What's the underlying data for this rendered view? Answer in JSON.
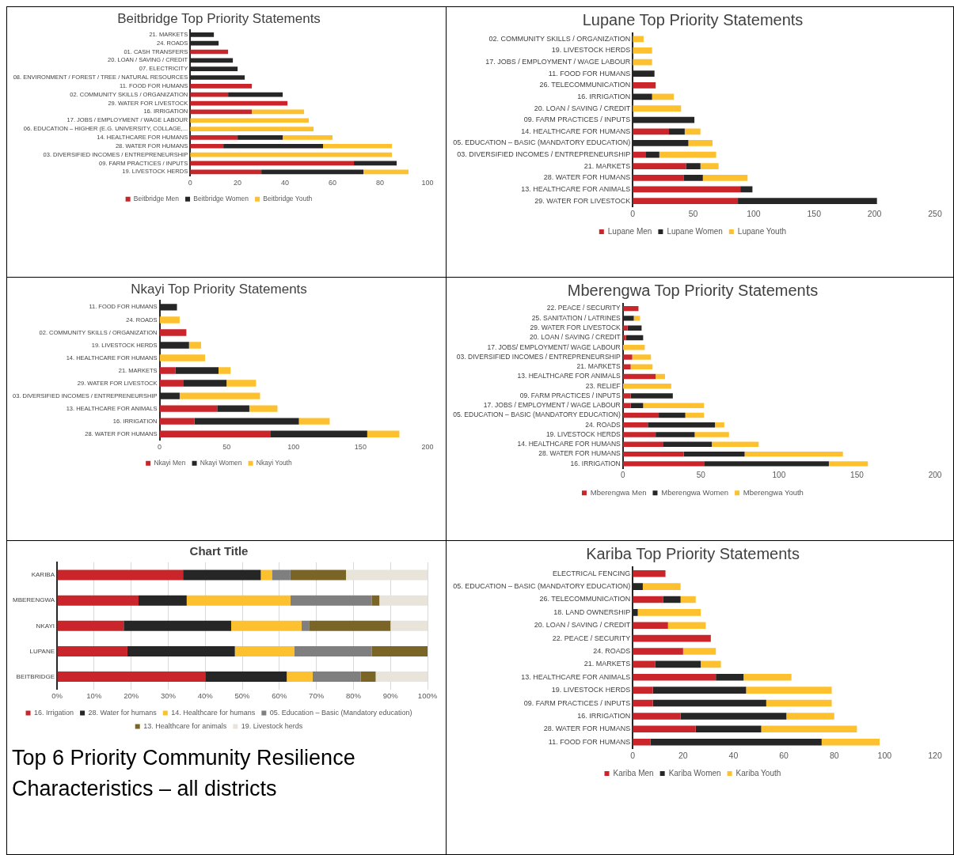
{
  "chart_data": [
    {
      "type": "bar",
      "orientation": "horizontal",
      "stacked": true,
      "title": "Beitbridge Top Priority Statements",
      "legend": "bottom",
      "grid": false,
      "categories": [
        "21. MARKETS",
        "24. ROADS",
        "01. CASH TRANSFERS",
        "20. LOAN / SAVING / CREDIT",
        "07. ELECTRICITY",
        "08. ENVIRONMENT / FOREST / TREE / NATURAL RESOURCES",
        "11. FOOD FOR HUMANS",
        "02. COMMUNITY SKILLS / ORGANIZATION",
        "29. WATER FOR LIVESTOCK",
        "16. IRRIGATION",
        "17. JOBS / EMPLOYMENT / WAGE LABOUR",
        "06. EDUCATION – HIGHER (E.G. UNIVERSITY, COLLAGE,...",
        "14. HEALTHCARE FOR HUMANS",
        "28. WATER FOR HUMANS",
        "03. DIVERSIFIED INCOMES / ENTREPRENEURSHIP",
        "09. FARM PRACTICES / INPUTS",
        "19. LIVESTOCK HERDS"
      ],
      "series": [
        {
          "name": "Beitbridge Men",
          "color": "#c9252b",
          "values": [
            0,
            0,
            16,
            0,
            0,
            0,
            26,
            16,
            41,
            26,
            0,
            0,
            20,
            14,
            0,
            69,
            30
          ]
        },
        {
          "name": "Beitbridge Women",
          "color": "#262626",
          "values": [
            10,
            12,
            0,
            18,
            20,
            23,
            0,
            23,
            0,
            0,
            0,
            0,
            19,
            42,
            0,
            18,
            43
          ]
        },
        {
          "name": "Beitbridge Youth",
          "color": "#fdc02f",
          "values": [
            0,
            0,
            0,
            0,
            0,
            0,
            0,
            0,
            0,
            22,
            50,
            52,
            21,
            29,
            85,
            0,
            19
          ]
        }
      ],
      "xlim": [
        0,
        100
      ],
      "xticks": [
        0,
        20,
        40,
        60,
        80,
        100
      ]
    },
    {
      "type": "bar",
      "orientation": "horizontal",
      "stacked": true,
      "title": "Lupane Top Priority Statements",
      "legend": "bottom",
      "grid": false,
      "categories": [
        "02. COMMUNITY SKILLS / ORGANIZATION",
        "19. LIVESTOCK HERDS",
        "17. JOBS / EMPLOYMENT / WAGE LABOUR",
        "11. FOOD FOR HUMANS",
        "26. TELECOMMUNICATION",
        "16. IRRIGATION",
        "20. LOAN / SAVING / CREDIT",
        "09. FARM PRACTICES / INPUTS",
        "14. HEALTHCARE FOR HUMANS",
        "05. EDUCATION – BASIC (MANDATORY EDUCATION)",
        "03. DIVERSIFIED INCOMES / ENTREPRENEURSHIP",
        "21. MARKETS",
        "28. WATER FOR HUMANS",
        "13. HEALTHCARE FOR ANIMALS",
        "29. WATER FOR LIVESTOCK"
      ],
      "series": [
        {
          "name": "Lupane Men",
          "color": "#c9252b",
          "values": [
            0,
            0,
            0,
            0,
            19,
            0,
            0,
            0,
            30,
            0,
            11,
            44,
            42,
            89,
            87
          ]
        },
        {
          "name": "Lupane Women",
          "color": "#262626",
          "values": [
            0,
            0,
            0,
            18,
            0,
            16,
            0,
            51,
            13,
            46,
            11,
            12,
            16,
            10,
            115
          ]
        },
        {
          "name": "Lupane Youth",
          "color": "#fdc02f",
          "values": [
            9,
            16,
            16,
            0,
            0,
            18,
            40,
            0,
            13,
            20,
            47,
            15,
            37,
            0,
            0
          ]
        }
      ],
      "xlim": [
        0,
        250
      ],
      "xticks": [
        0,
        50,
        100,
        150,
        200,
        250
      ]
    },
    {
      "type": "bar",
      "orientation": "horizontal",
      "stacked": true,
      "title": "Nkayi Top Priority Statements",
      "legend": "bottom",
      "grid": false,
      "categories": [
        "11. FOOD FOR HUMANS",
        "24. ROADS",
        "02. COMMUNITY SKILLS / ORGANIZATION",
        "19. LIVESTOCK HERDS",
        "14. HEALTHCARE FOR HUMANS",
        "21. MARKETS",
        "29. WATER FOR LIVESTOCK",
        "03. DIVERSIFIED INCOMES / ENTREPRENEURSHIP",
        "13. HEALTHCARE FOR ANIMALS",
        "16. IRRIGATION",
        "28. WATER FOR HUMANS"
      ],
      "series": [
        {
          "name": "Nkayi Men",
          "color": "#c9252b",
          "values": [
            0,
            0,
            20,
            0,
            0,
            12,
            18,
            0,
            43,
            26,
            83
          ]
        },
        {
          "name": "Nkayi Women",
          "color": "#262626",
          "values": [
            13,
            0,
            0,
            22,
            0,
            32,
            32,
            15,
            24,
            78,
            72
          ]
        },
        {
          "name": "Nkayi Youth",
          "color": "#fdc02f",
          "values": [
            0,
            15,
            0,
            9,
            34,
            9,
            22,
            60,
            21,
            23,
            24
          ]
        }
      ],
      "xlim": [
        0,
        200
      ],
      "xticks": [
        0,
        50,
        100,
        150,
        200
      ]
    },
    {
      "type": "bar",
      "orientation": "horizontal",
      "stacked": true,
      "title": "Mberengwa Top Priority Statements",
      "legend": "bottom",
      "grid": false,
      "categories": [
        "22. PEACE / SECURITY",
        "25. SANITATION / LATRINES",
        "29. WATER FOR LIVESTOCK",
        "20. LOAN / SAVING / CREDIT",
        "17. JOBS/ EMPLOYMENT/ WAGE LABOUR",
        "03. DIVERSIFIED INCOMES / ENTREPRENEURSHIP",
        "21. MARKETS",
        "13. HEALTHCARE FOR ANIMALS",
        "23. RELIEF",
        "09. FARM PRACTICES / INPUTS",
        "17. JOBS / EMPLOYMENT / WAGE LABOUR",
        "05. EDUCATION – BASIC (MANDATORY EDUCATION)",
        "24. ROADS",
        "19. LIVESTOCK HERDS",
        "14. HEALTHCARE FOR HUMANS",
        "28. WATER FOR HUMANS",
        "16. IRRIGATION"
      ],
      "series": [
        {
          "name": "Mberengwa Men",
          "color": "#c9252b",
          "values": [
            10,
            0,
            3,
            2,
            0,
            6,
            5,
            21,
            0,
            5,
            5,
            23,
            16,
            21,
            26,
            39,
            52
          ]
        },
        {
          "name": "Mberengwa Women",
          "color": "#262626",
          "values": [
            0,
            7,
            9,
            11,
            0,
            0,
            0,
            0,
            0,
            27,
            8,
            17,
            43,
            25,
            31,
            39,
            80
          ]
        },
        {
          "name": "Mberengwa Youth",
          "color": "#fdc02f",
          "values": [
            0,
            4,
            0,
            0,
            14,
            12,
            14,
            6,
            31,
            0,
            39,
            12,
            6,
            22,
            30,
            63,
            25
          ]
        }
      ],
      "xlim": [
        0,
        200
      ],
      "xticks": [
        0,
        50,
        100,
        150,
        200
      ]
    },
    {
      "type": "bar",
      "orientation": "horizontal",
      "stacked": true,
      "title": "Chart Title",
      "legend": "bottom",
      "grid": "x",
      "categories": [
        "KARIBA",
        "MBERENGWA",
        "NKAYI",
        "LUPANE",
        "BEITBRIDGE"
      ],
      "series": [
        {
          "name": "16. Irrigation",
          "color": "#c9252b",
          "values": [
            34,
            22,
            18,
            19,
            40
          ]
        },
        {
          "name": "28. Water for humans",
          "color": "#262626",
          "values": [
            21,
            13,
            29,
            29,
            22
          ]
        },
        {
          "name": "14. Healthcare for humans",
          "color": "#fdc02f",
          "values": [
            3,
            28,
            19,
            16,
            7
          ]
        },
        {
          "name": "05. Education – Basic (Mandatory education)",
          "color": "#7f7f7f",
          "values": [
            5,
            22,
            2,
            21,
            13
          ]
        },
        {
          "name": "13. Healthcare for animals",
          "color": "#7a6426",
          "values": [
            15,
            2,
            22,
            15,
            4
          ]
        },
        {
          "name": "19. Livestock herds",
          "color": "#e8e4da",
          "values": [
            22,
            13,
            10,
            0,
            14
          ]
        }
      ],
      "xlim": [
        0,
        100
      ],
      "xticks": [
        {
          "value": 0,
          "label": "0%"
        },
        {
          "value": 10,
          "label": "10%"
        },
        {
          "value": 20,
          "label": "20%"
        },
        {
          "value": 30,
          "label": "30%"
        },
        {
          "value": 40,
          "label": "40%"
        },
        {
          "value": 50,
          "label": "50%"
        },
        {
          "value": 60,
          "label": "60%"
        },
        {
          "value": 70,
          "label": "70%"
        },
        {
          "value": 80,
          "label": "80%"
        },
        {
          "value": 90,
          "label": "90%"
        },
        {
          "value": 100,
          "label": "100%"
        }
      ],
      "annotations": [
        "Top 6 Priority Community Resilience Characteristics – all districts"
      ]
    },
    {
      "type": "bar",
      "orientation": "horizontal",
      "stacked": true,
      "title": "Kariba Top Priority Statements",
      "legend": "bottom",
      "grid": false,
      "categories": [
        "ELECTRICAL FENCING",
        "05. EDUCATION – BASIC (MANDATORY EDUCATION)",
        "26. TELECOMMUNICATION",
        "18. LAND OWNERSHIP",
        "20. LOAN / SAVING / CREDIT",
        "22. PEACE / SECURITY",
        "24. ROADS",
        "21. MARKETS",
        "13. HEALTHCARE FOR ANIMALS",
        "19. LIVESTOCK HERDS",
        "09. FARM PRACTICES / INPUTS",
        "16. IRRIGATION",
        "28. WATER FOR HUMANS",
        "11. FOOD FOR HUMANS"
      ],
      "series": [
        {
          "name": "Kariba Men",
          "color": "#c9252b",
          "values": [
            13,
            0,
            12,
            0,
            14,
            31,
            20,
            9,
            33,
            8,
            8,
            19,
            25,
            7
          ]
        },
        {
          "name": "Kariba Women",
          "color": "#262626",
          "values": [
            0,
            4,
            7,
            2,
            0,
            0,
            0,
            18,
            11,
            37,
            45,
            42,
            26,
            68
          ]
        },
        {
          "name": "Kariba Youth",
          "color": "#fdc02f",
          "values": [
            0,
            15,
            6,
            25,
            15,
            0,
            13,
            8,
            19,
            34,
            26,
            19,
            38,
            23
          ]
        }
      ],
      "xlim": [
        0,
        120
      ],
      "xticks": [
        0,
        20,
        40,
        60,
        80,
        100,
        120
      ]
    }
  ]
}
